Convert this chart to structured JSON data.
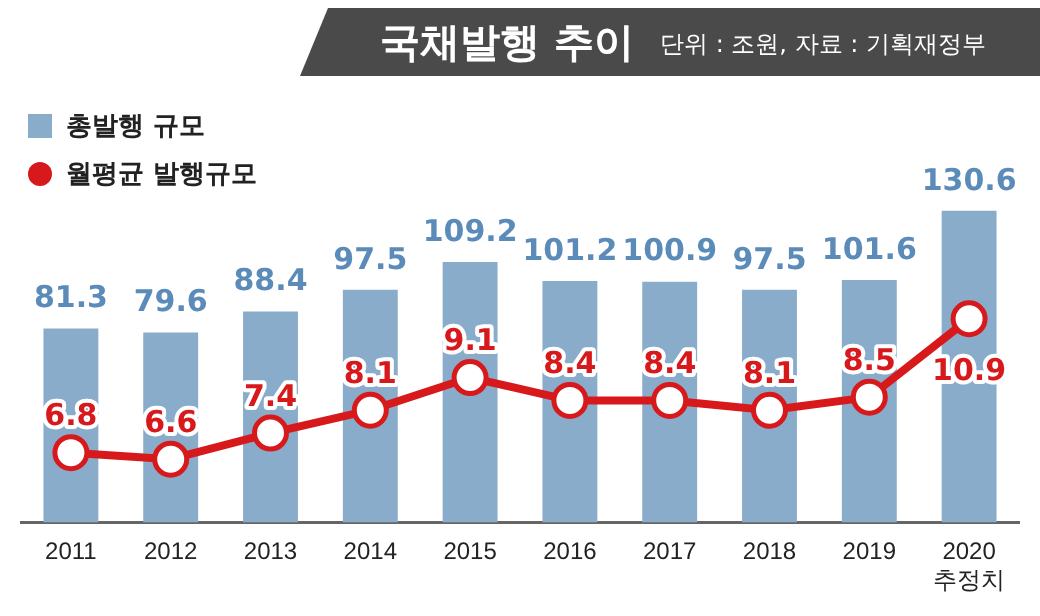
{
  "chart_data": {
    "type": "bar",
    "title": "국채발행 추이",
    "subtitle": "단위 : 조원, 자료 : 기획재정부",
    "categories": [
      "2011",
      "2012",
      "2013",
      "2014",
      "2015",
      "2016",
      "2017",
      "2018",
      "2019",
      "2020\n추정치"
    ],
    "series": [
      {
        "name": "총발행 규모",
        "color": "#8aaccb",
        "values": [
          81.3,
          79.6,
          88.4,
          97.5,
          109.2,
          101.2,
          100.9,
          97.5,
          101.6,
          130.6
        ]
      },
      {
        "name": "월평균 발행규모",
        "type": "line",
        "axis": "y2",
        "color": "#d7191c",
        "values": [
          6.8,
          6.6,
          7.4,
          8.1,
          9.1,
          8.4,
          8.4,
          8.1,
          8.5,
          10.9
        ]
      }
    ],
    "tick_labels": "x",
    "grid": false,
    "legend": "top left",
    "marker": "circle",
    "line_style": "solid",
    "data_labels": true
  }
}
